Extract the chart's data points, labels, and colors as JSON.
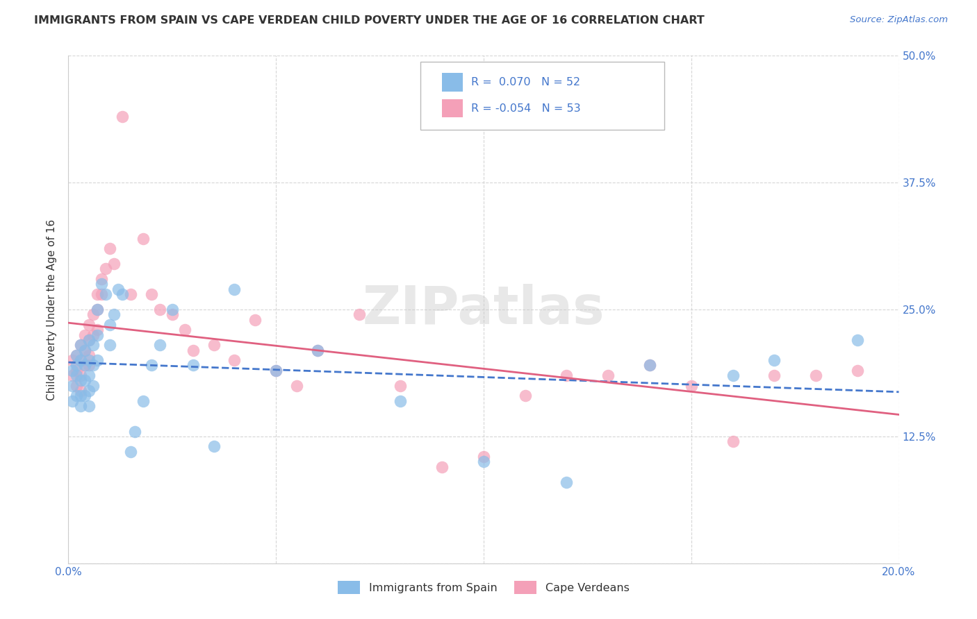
{
  "title": "IMMIGRANTS FROM SPAIN VS CAPE VERDEAN CHILD POVERTY UNDER THE AGE OF 16 CORRELATION CHART",
  "source": "Source: ZipAtlas.com",
  "ylabel": "Child Poverty Under the Age of 16",
  "x_min": 0.0,
  "x_max": 0.2,
  "y_min": 0.0,
  "y_max": 0.5,
  "x_ticks": [
    0.0,
    0.05,
    0.1,
    0.15,
    0.2
  ],
  "y_ticks": [
    0.0,
    0.125,
    0.25,
    0.375,
    0.5
  ],
  "y_tick_labels": [
    "",
    "12.5%",
    "25.0%",
    "37.5%",
    "50.0%"
  ],
  "x_tick_labels": [
    "0.0%",
    "",
    "",
    "",
    "20.0%"
  ],
  "legend_label_1": "Immigrants from Spain",
  "legend_label_2": "Cape Verdeans",
  "spain_color": "#89bce8",
  "cape_color": "#f4a0b8",
  "trend_spain_color": "#4477cc",
  "trend_cape_color": "#e06080",
  "watermark": "ZIPatlas",
  "background_color": "#ffffff",
  "grid_color": "#cccccc",
  "spain_x": [
    0.001,
    0.001,
    0.001,
    0.002,
    0.002,
    0.002,
    0.002,
    0.003,
    0.003,
    0.003,
    0.003,
    0.003,
    0.004,
    0.004,
    0.004,
    0.004,
    0.005,
    0.005,
    0.005,
    0.005,
    0.005,
    0.006,
    0.006,
    0.006,
    0.007,
    0.007,
    0.007,
    0.008,
    0.009,
    0.01,
    0.01,
    0.011,
    0.012,
    0.013,
    0.015,
    0.016,
    0.018,
    0.02,
    0.022,
    0.025,
    0.03,
    0.035,
    0.04,
    0.05,
    0.06,
    0.08,
    0.1,
    0.12,
    0.14,
    0.16,
    0.17,
    0.19
  ],
  "spain_y": [
    0.19,
    0.175,
    0.16,
    0.195,
    0.205,
    0.185,
    0.165,
    0.215,
    0.2,
    0.18,
    0.165,
    0.155,
    0.21,
    0.195,
    0.18,
    0.165,
    0.22,
    0.2,
    0.185,
    0.17,
    0.155,
    0.215,
    0.195,
    0.175,
    0.25,
    0.225,
    0.2,
    0.275,
    0.265,
    0.235,
    0.215,
    0.245,
    0.27,
    0.265,
    0.11,
    0.13,
    0.16,
    0.195,
    0.215,
    0.25,
    0.195,
    0.115,
    0.27,
    0.19,
    0.21,
    0.16,
    0.1,
    0.08,
    0.195,
    0.185,
    0.2,
    0.22
  ],
  "cape_x": [
    0.001,
    0.001,
    0.002,
    0.002,
    0.002,
    0.003,
    0.003,
    0.003,
    0.003,
    0.004,
    0.004,
    0.004,
    0.005,
    0.005,
    0.005,
    0.005,
    0.006,
    0.006,
    0.007,
    0.007,
    0.007,
    0.008,
    0.008,
    0.009,
    0.01,
    0.011,
    0.013,
    0.015,
    0.018,
    0.02,
    0.022,
    0.025,
    0.028,
    0.03,
    0.035,
    0.04,
    0.045,
    0.05,
    0.055,
    0.06,
    0.07,
    0.08,
    0.09,
    0.1,
    0.11,
    0.12,
    0.13,
    0.14,
    0.15,
    0.16,
    0.17,
    0.18,
    0.19
  ],
  "cape_y": [
    0.2,
    0.185,
    0.205,
    0.19,
    0.175,
    0.215,
    0.2,
    0.185,
    0.17,
    0.225,
    0.21,
    0.195,
    0.235,
    0.22,
    0.205,
    0.195,
    0.245,
    0.225,
    0.265,
    0.25,
    0.23,
    0.28,
    0.265,
    0.29,
    0.31,
    0.295,
    0.44,
    0.265,
    0.32,
    0.265,
    0.25,
    0.245,
    0.23,
    0.21,
    0.215,
    0.2,
    0.24,
    0.19,
    0.175,
    0.21,
    0.245,
    0.175,
    0.095,
    0.105,
    0.165,
    0.185,
    0.185,
    0.195,
    0.175,
    0.12,
    0.185,
    0.185,
    0.19
  ]
}
